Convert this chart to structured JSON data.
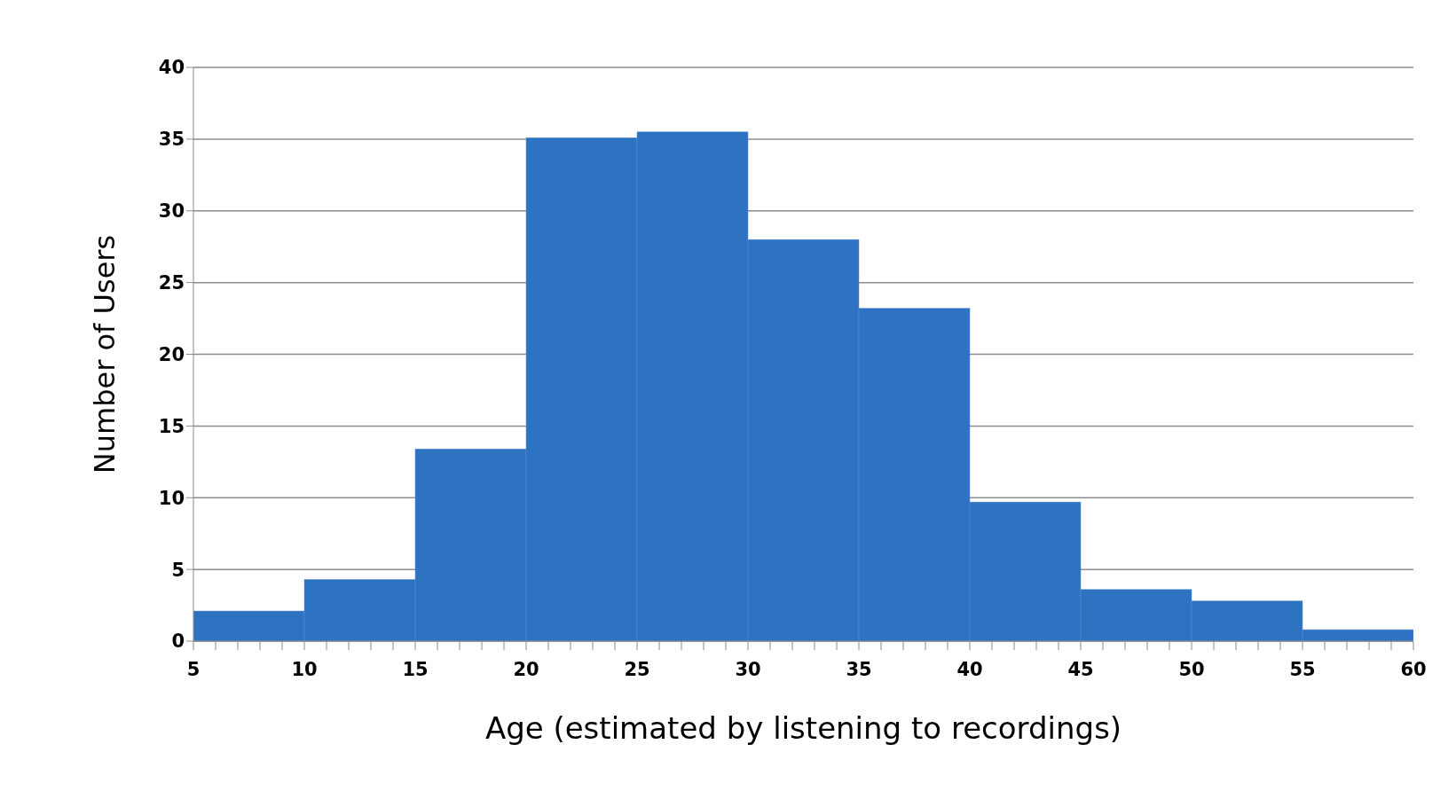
{
  "chart_data": {
    "type": "histogram",
    "xlabel": "Age (estimated by listening to recordings)",
    "ylabel": "Number of Users",
    "bins": [
      5,
      10,
      15,
      20,
      25,
      30,
      35,
      40,
      45,
      50,
      55,
      60
    ],
    "values": [
      2.1,
      4.3,
      13.4,
      35.1,
      35.5,
      28.0,
      23.2,
      9.7,
      3.6,
      2.8,
      0.8
    ],
    "color": "#2e72c2",
    "xlim": [
      5,
      60
    ],
    "xticks": [
      5,
      10,
      15,
      20,
      25,
      30,
      35,
      40,
      45,
      50,
      55,
      60
    ],
    "ylim": [
      0,
      40
    ],
    "yticks": [
      0,
      5,
      10,
      15,
      20,
      25,
      30,
      35,
      40
    ],
    "grid": "y"
  }
}
